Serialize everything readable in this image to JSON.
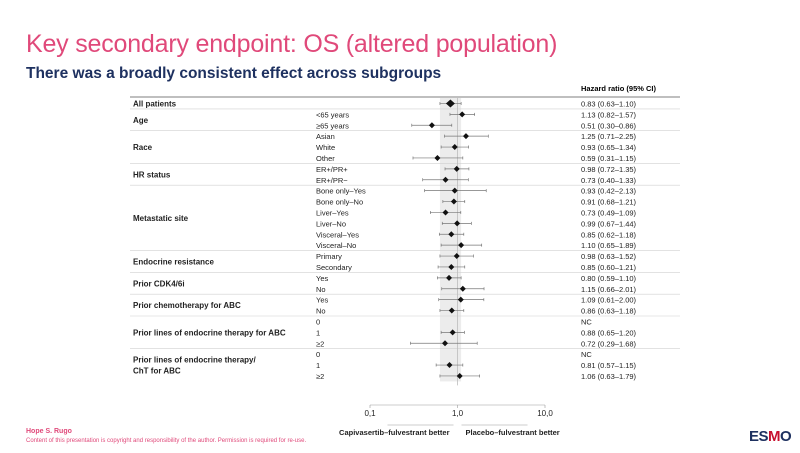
{
  "slide": {
    "title": "Key secondary endpoint: OS (altered population)",
    "subtitle": "There was a broadly consistent effect across subgroups"
  },
  "footer": {
    "author": "Hope S. Rugo",
    "disclaimer": "Content of this presentation is copyright and responsibility of the author. Permission is required for re-use.",
    "logo_main": "ES",
    "logo_accent": "M",
    "logo_end": "O"
  },
  "colors": {
    "title": "#e0497a",
    "subtitle": "#1e3160",
    "marker": "#111111",
    "ci_line": "#777777",
    "shade": "#ececec"
  },
  "chart_data": {
    "type": "forest",
    "column_header": "Hazard ratio (95% CI)",
    "x_scale": "log",
    "xlim": [
      0.1,
      10.0
    ],
    "ticks": [
      0.1,
      1.0,
      10.0
    ],
    "tick_labels": [
      "0,1",
      "1,0",
      "10,0"
    ],
    "favors_left": "Capivasertib–fulvestrant better",
    "favors_right": "Placebo–fulvestrant better",
    "groups": [
      {
        "label": "All patients",
        "rows": [
          {
            "label": "",
            "hr": 0.83,
            "lo": 0.63,
            "hi": 1.1,
            "text": "0.83 (0.63–1.10)",
            "overall": true
          }
        ]
      },
      {
        "label": "Age",
        "rows": [
          {
            "label": "<65 years",
            "hr": 1.13,
            "lo": 0.82,
            "hi": 1.57,
            "text": "1.13 (0.82–1.57)"
          },
          {
            "label": "≥65 years",
            "hr": 0.51,
            "lo": 0.3,
            "hi": 0.86,
            "text": "0.51 (0.30–0.86)"
          }
        ]
      },
      {
        "label": "Race",
        "rows": [
          {
            "label": "Asian",
            "hr": 1.25,
            "lo": 0.71,
            "hi": 2.25,
            "text": "1.25 (0.71–2.25)"
          },
          {
            "label": "White",
            "hr": 0.93,
            "lo": 0.65,
            "hi": 1.34,
            "text": "0.93 (0.65–1.34)"
          },
          {
            "label": "Other",
            "hr": 0.59,
            "lo": 0.31,
            "hi": 1.15,
            "text": "0.59 (0.31–1.15)"
          }
        ]
      },
      {
        "label": "HR status",
        "rows": [
          {
            "label": "ER+/PR+",
            "hr": 0.98,
            "lo": 0.72,
            "hi": 1.35,
            "text": "0.98 (0.72–1.35)"
          },
          {
            "label": "ER+/PR−",
            "hr": 0.73,
            "lo": 0.4,
            "hi": 1.33,
            "text": "0.73 (0.40–1.33)"
          }
        ]
      },
      {
        "label": "Metastatic site",
        "rows": [
          {
            "label": "Bone only–Yes",
            "hr": 0.93,
            "lo": 0.42,
            "hi": 2.13,
            "text": "0.93 (0.42–2.13)"
          },
          {
            "label": "Bone only–No",
            "hr": 0.91,
            "lo": 0.68,
            "hi": 1.21,
            "text": "0.91 (0.68–1.21)"
          },
          {
            "label": "Liver–Yes",
            "hr": 0.73,
            "lo": 0.49,
            "hi": 1.09,
            "text": "0.73 (0.49–1.09)"
          },
          {
            "label": "Liver–No",
            "hr": 0.99,
            "lo": 0.67,
            "hi": 1.44,
            "text": "0.99 (0.67–1.44)"
          },
          {
            "label": "Visceral–Yes",
            "hr": 0.85,
            "lo": 0.62,
            "hi": 1.18,
            "text": "0.85 (0.62–1.18)"
          },
          {
            "label": "Visceral–No",
            "hr": 1.1,
            "lo": 0.65,
            "hi": 1.89,
            "text": "1.10 (0.65–1.89)"
          }
        ]
      },
      {
        "label": "Endocrine resistance",
        "rows": [
          {
            "label": "Primary",
            "hr": 0.98,
            "lo": 0.63,
            "hi": 1.52,
            "text": "0.98 (0.63–1.52)"
          },
          {
            "label": "Secondary",
            "hr": 0.85,
            "lo": 0.6,
            "hi": 1.21,
            "text": "0.85 (0.60–1.21)"
          }
        ]
      },
      {
        "label": "Prior CDK4/6i",
        "rows": [
          {
            "label": "Yes",
            "hr": 0.8,
            "lo": 0.59,
            "hi": 1.1,
            "text": "0.80 (0.59–1.10)"
          },
          {
            "label": "No",
            "hr": 1.15,
            "lo": 0.66,
            "hi": 2.01,
            "text": "1.15 (0.66–2.01)"
          }
        ]
      },
      {
        "label": "Prior chemotherapy for ABC",
        "rows": [
          {
            "label": "Yes",
            "hr": 1.09,
            "lo": 0.61,
            "hi": 2.0,
            "text": "1.09 (0.61–2.00)"
          },
          {
            "label": "No",
            "hr": 0.86,
            "lo": 0.63,
            "hi": 1.18,
            "text": "0.86 (0.63–1.18)"
          }
        ]
      },
      {
        "label": "Prior lines of endocrine therapy for ABC",
        "rows": [
          {
            "label": "0",
            "hr": null,
            "lo": null,
            "hi": null,
            "text": "NC"
          },
          {
            "label": "1",
            "hr": 0.88,
            "lo": 0.65,
            "hi": 1.2,
            "text": "0.88 (0.65–1.20)"
          },
          {
            "label": "≥2",
            "hr": 0.72,
            "lo": 0.29,
            "hi": 1.68,
            "text": "0.72 (0.29–1.68)"
          }
        ]
      },
      {
        "label": "Prior lines of endocrine therapy/\nChT for ABC",
        "rows": [
          {
            "label": "0",
            "hr": null,
            "lo": null,
            "hi": null,
            "text": "NC"
          },
          {
            "label": "1",
            "hr": 0.81,
            "lo": 0.57,
            "hi": 1.15,
            "text": "0.81 (0.57–1.15)"
          },
          {
            "label": "≥2",
            "hr": 1.06,
            "lo": 0.63,
            "hi": 1.79,
            "text": "1.06 (0.63–1.79)"
          }
        ]
      }
    ]
  }
}
